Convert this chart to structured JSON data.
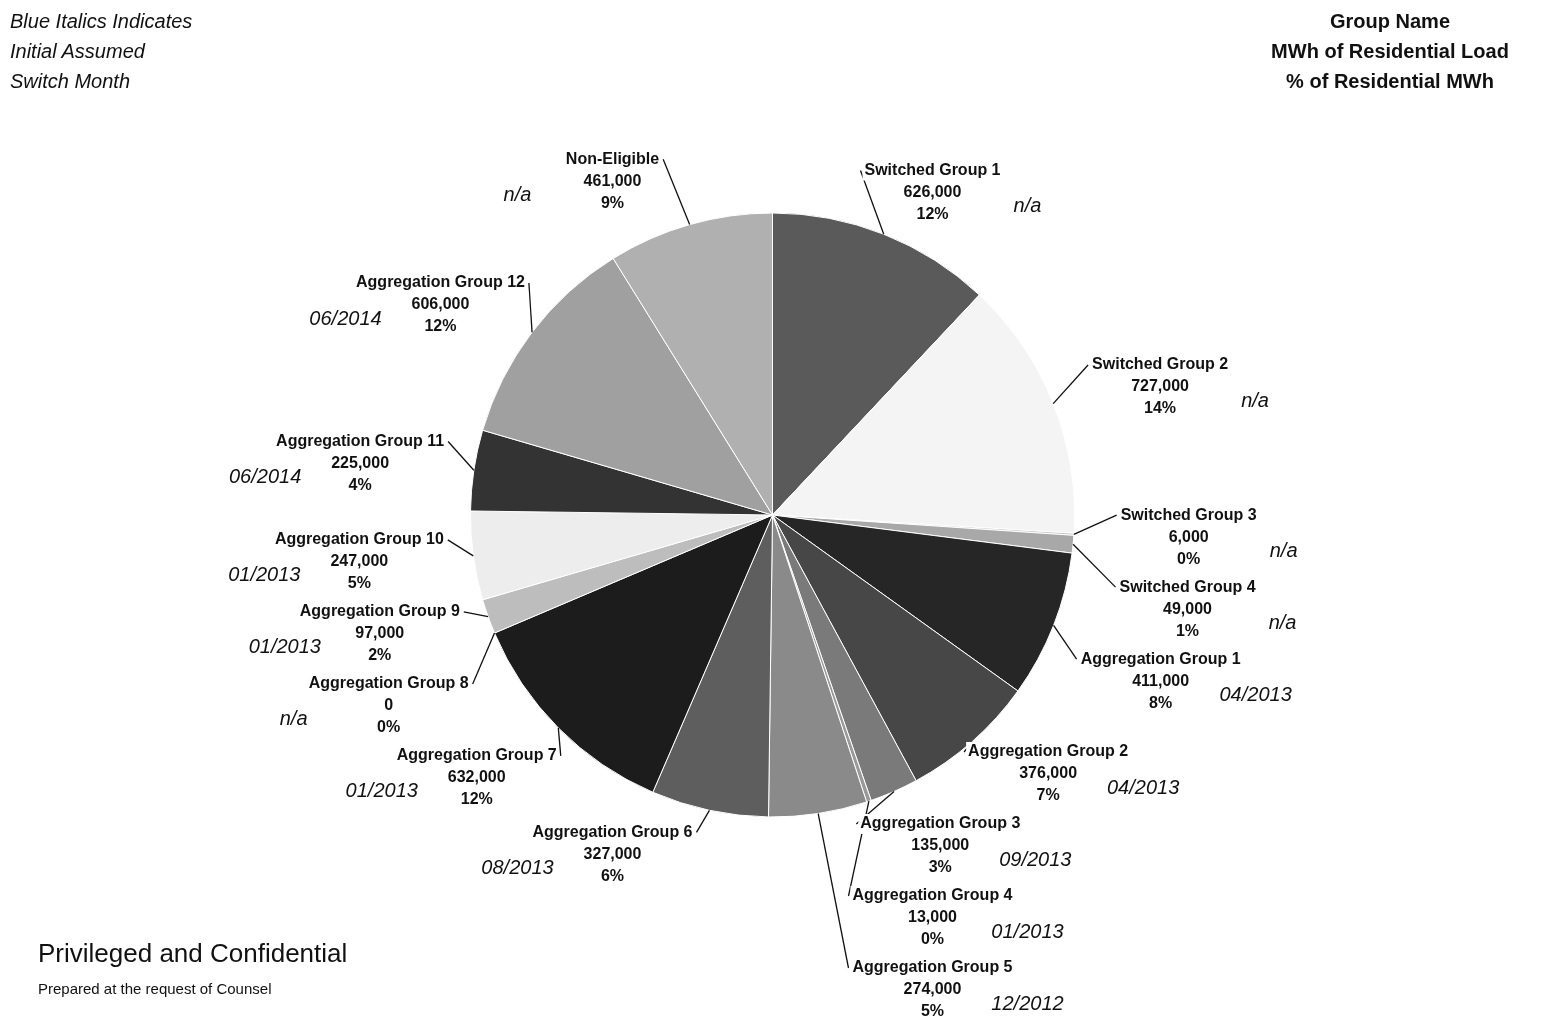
{
  "chart_data": {
    "type": "pie",
    "categories": [
      "Switched Group 1",
      "Switched Group 2",
      "Switched Group 3",
      "Switched Group 4",
      "Aggregation Group 1",
      "Aggregation Group 2",
      "Aggregation Group 3",
      "Aggregation Group 4",
      "Aggregation Group 5",
      "Aggregation Group 6",
      "Aggregation Group 7",
      "Aggregation Group 8",
      "Aggregation Group 9",
      "Aggregation Group 10",
      "Aggregation Group 11",
      "Aggregation Group 12",
      "Non-Eligible"
    ],
    "values": [
      626000,
      727000,
      6000,
      49000,
      411000,
      376000,
      135000,
      13000,
      274000,
      327000,
      632000,
      0,
      97000,
      247000,
      225000,
      606000,
      461000
    ],
    "colors": [
      "#5a5a5a",
      "#f4f4f4",
      "#c8c8c8",
      "#a8a8a8",
      "#262626",
      "#474747",
      "#7a7a7a",
      "#9a9a9a",
      "#8a8a8a",
      "#5e5e5e",
      "#1c1c1c",
      "#000000",
      "#bdbdbd",
      "#ededed",
      "#333333",
      "#a0a0a0",
      "#b0b0b0"
    ],
    "value_labels": [
      "626,000",
      "727,000",
      "6,000",
      "49,000",
      "411,000",
      "376,000",
      "135,000",
      "13,000",
      "274,000",
      "327,000",
      "632,000",
      "0",
      "97,000",
      "247,000",
      "225,000",
      "606,000",
      "461,000"
    ],
    "legend": false,
    "annotations": [
      "Blue Italics Indicates\nInitial Assumed\nSwitch Month",
      "Group Name\nMWh of Residential Load\n% of Residential MWh",
      "Privileged and Confidential",
      "Prepared at the request of Counsel",
      {
        "text": "12%",
        "x": "Switched Group 1"
      },
      {
        "text": "n/a",
        "x": "Switched Group 1"
      },
      {
        "text": "14%",
        "x": "Switched Group 2"
      },
      {
        "text": "n/a",
        "x": "Switched Group 2"
      },
      {
        "text": "0%",
        "x": "Switched Group 3"
      },
      {
        "text": "n/a",
        "x": "Switched Group 3"
      },
      {
        "text": "1%",
        "x": "Switched Group 4"
      },
      {
        "text": "n/a",
        "x": "Switched Group 4"
      },
      {
        "text": "8%",
        "x": "Aggregation Group 1"
      },
      {
        "text": "04/2013",
        "x": "Aggregation Group 1"
      },
      {
        "text": "7%",
        "x": "Aggregation Group 2"
      },
      {
        "text": "04/2013",
        "x": "Aggregation Group 2"
      },
      {
        "text": "3%",
        "x": "Aggregation Group 3"
      },
      {
        "text": "09/2013",
        "x": "Aggregation Group 3"
      },
      {
        "text": "0%",
        "x": "Aggregation Group 4"
      },
      {
        "text": "01/2013",
        "x": "Aggregation Group 4"
      },
      {
        "text": "5%",
        "x": "Aggregation Group 5"
      },
      {
        "text": "12/2012",
        "x": "Aggregation Group 5"
      },
      {
        "text": "6%",
        "x": "Aggregation Group 6"
      },
      {
        "text": "08/2013",
        "x": "Aggregation Group 6"
      },
      {
        "text": "12%",
        "x": "Aggregation Group 7"
      },
      {
        "text": "01/2013",
        "x": "Aggregation Group 7"
      },
      {
        "text": "0%",
        "x": "Aggregation Group 8"
      },
      {
        "text": "n/a",
        "x": "Aggregation Group 8"
      },
      {
        "text": "2%",
        "x": "Aggregation Group 9"
      },
      {
        "text": "01/2013",
        "x": "Aggregation Group 9"
      },
      {
        "text": "5%",
        "x": "Aggregation Group 10"
      },
      {
        "text": "01/2013",
        "x": "Aggregation Group 10"
      },
      {
        "text": "4%",
        "x": "Aggregation Group 11"
      },
      {
        "text": "06/2014",
        "x": "Aggregation Group 11"
      },
      {
        "text": "12%",
        "x": "Aggregation Group 12"
      },
      {
        "text": "06/2014",
        "x": "Aggregation Group 12"
      },
      {
        "text": "9%",
        "x": "Non-Eligible"
      },
      {
        "text": "n/a",
        "x": "Non-Eligible"
      }
    ]
  }
}
